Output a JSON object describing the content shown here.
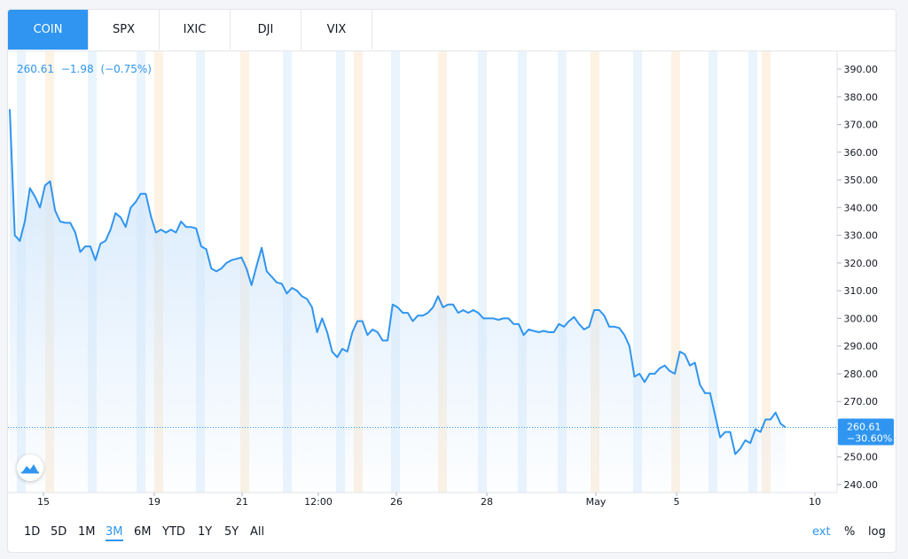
{
  "tabs": [
    "COIN",
    "SPX",
    "IXIC",
    "DJI",
    "VIX"
  ],
  "active_tab": 0,
  "legend": {
    "price": "260.61",
    "change": "−1.98",
    "pct": "(−0.75%)"
  },
  "price_tag": {
    "value": "260.61",
    "pct": "−30.60%"
  },
  "ranges": [
    "1D",
    "5D",
    "1M",
    "3M",
    "6M",
    "YTD",
    "1Y",
    "5Y",
    "All"
  ],
  "active_range": "3M",
  "right_controls": {
    "ext": "ext",
    "pct": "%",
    "log": "log"
  },
  "colors": {
    "line": "#2f95f0",
    "fill_top": "#cfe5fb",
    "pre": "#eaf4fd",
    "post": "#fdf2e4",
    "accent": "#2f95f0"
  },
  "logo_icon": "tradingview-cloud-icon",
  "chart_data": {
    "type": "area",
    "y_axis": {
      "range": [
        240,
        395
      ],
      "ticks": [
        "390.00",
        "380.00",
        "370.00",
        "360.00",
        "350.00",
        "340.00",
        "330.00",
        "320.00",
        "310.00",
        "300.00",
        "290.00",
        "280.00",
        "270.00",
        "260.00",
        "250.00",
        "240.00"
      ]
    },
    "x_ticks": [
      "15",
      "19",
      "21",
      "12:00",
      "26",
      "28",
      "May",
      "5",
      "10"
    ],
    "values": [
      375.5,
      330,
      328,
      335,
      347,
      344,
      340,
      348,
      349.5,
      339,
      335,
      334.5,
      334.5,
      331,
      324,
      326,
      326,
      321,
      327,
      328,
      332,
      338,
      336.5,
      333,
      340,
      342,
      345,
      345,
      337,
      331,
      332,
      331,
      332,
      331,
      335,
      333,
      333,
      332.5,
      326,
      325,
      318,
      317,
      318,
      320,
      321,
      321.5,
      322,
      318,
      312,
      319,
      325.5,
      317,
      315,
      313,
      312.5,
      309,
      311,
      310,
      308,
      307,
      304,
      295,
      300,
      295,
      288,
      286,
      289,
      288,
      295,
      299,
      299,
      294,
      296,
      295,
      292,
      292,
      305,
      304,
      302,
      302,
      299,
      301,
      301,
      302,
      304,
      308,
      304,
      305,
      305,
      302,
      303,
      302,
      303,
      302,
      300,
      300,
      300,
      299.5,
      300,
      300,
      298,
      298,
      294,
      296,
      295.5,
      295,
      295.5,
      295,
      295,
      298,
      297,
      299,
      300.5,
      298,
      296,
      297,
      303,
      303,
      301,
      297,
      297,
      296.5,
      294,
      290,
      279,
      280,
      277,
      280,
      280,
      282,
      283,
      281,
      280,
      288,
      287,
      283,
      284,
      276,
      273,
      273,
      265,
      257,
      259,
      259,
      251,
      253,
      256,
      255,
      260,
      259,
      263.5,
      263.5,
      266,
      262,
      260.61
    ]
  }
}
